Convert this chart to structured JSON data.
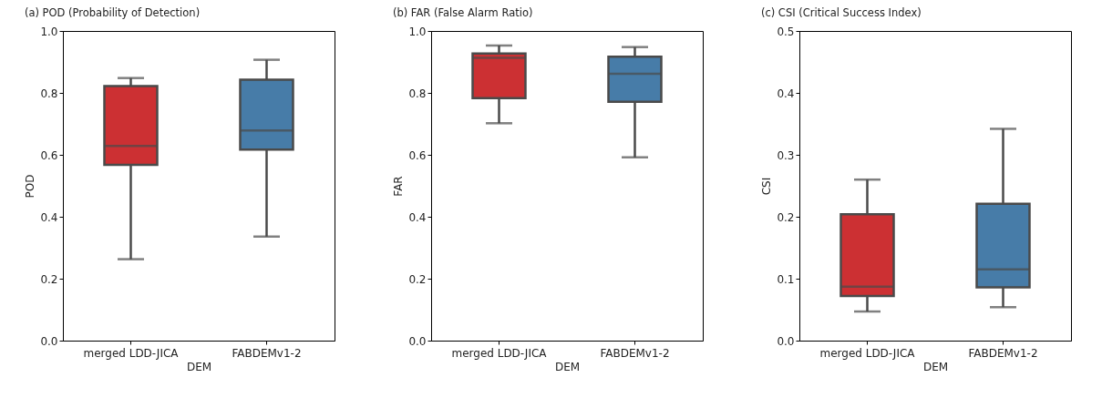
{
  "chart_data": [
    {
      "type": "box",
      "title": "(a)  POD (Probability of Detection)",
      "xlabel": "DEM",
      "ylabel": "POD",
      "categories": [
        "merged LDD-JICA",
        "FABDEMv1-2"
      ],
      "colors": [
        "#cc3033",
        "#477ca8"
      ],
      "boxes": [
        {
          "low": 0.263,
          "q1": 0.568,
          "median": 0.629,
          "q3": 0.822,
          "high": 0.848
        },
        {
          "low": 0.336,
          "q1": 0.617,
          "median": 0.679,
          "q3": 0.843,
          "high": 0.907
        }
      ],
      "ylim": [
        0,
        1
      ],
      "yticks": [
        {
          "value": 0,
          "label": "0.0"
        },
        {
          "value": 0.2,
          "label": "0.2"
        },
        {
          "value": 0.4,
          "label": "0.4"
        },
        {
          "value": 0.6,
          "label": "0.6"
        },
        {
          "value": 0.8,
          "label": "0.8"
        },
        {
          "value": 1,
          "label": "1.0"
        }
      ],
      "grid": false
    },
    {
      "type": "box",
      "title": "(b)  FAR (False Alarm Ratio)",
      "xlabel": "DEM",
      "ylabel": "FAR",
      "categories": [
        "merged LDD-JICA",
        "FABDEMv1-2"
      ],
      "colors": [
        "#cc3033",
        "#477ca8"
      ],
      "boxes": [
        {
          "low": 0.702,
          "q1": 0.783,
          "median": 0.913,
          "q3": 0.927,
          "high": 0.953
        },
        {
          "low": 0.592,
          "q1": 0.771,
          "median": 0.862,
          "q3": 0.917,
          "high": 0.948
        }
      ],
      "ylim": [
        0,
        1
      ],
      "yticks": [
        {
          "value": 0,
          "label": "0.0"
        },
        {
          "value": 0.2,
          "label": "0.2"
        },
        {
          "value": 0.4,
          "label": "0.4"
        },
        {
          "value": 0.6,
          "label": "0.6"
        },
        {
          "value": 0.8,
          "label": "0.8"
        },
        {
          "value": 1,
          "label": "1.0"
        }
      ],
      "grid": false
    },
    {
      "type": "box",
      "title": "(c)  CSI (Critical Success Index)",
      "xlabel": "DEM",
      "ylabel": "CSI",
      "categories": [
        "merged LDD-JICA",
        "FABDEMv1-2"
      ],
      "colors": [
        "#cc3033",
        "#477ca8"
      ],
      "boxes": [
        {
          "low": 0.047,
          "q1": 0.072,
          "median": 0.087,
          "q3": 0.204,
          "high": 0.26
        },
        {
          "low": 0.054,
          "q1": 0.086,
          "median": 0.115,
          "q3": 0.221,
          "high": 0.342
        }
      ],
      "ylim": [
        0,
        0.5
      ],
      "yticks": [
        {
          "value": 0,
          "label": "0.0"
        },
        {
          "value": 0.1,
          "label": "0.1"
        },
        {
          "value": 0.2,
          "label": "0.2"
        },
        {
          "value": 0.3,
          "label": "0.3"
        },
        {
          "value": 0.4,
          "label": "0.4"
        },
        {
          "value": 0.5,
          "label": "0.5"
        }
      ],
      "grid": false
    }
  ]
}
